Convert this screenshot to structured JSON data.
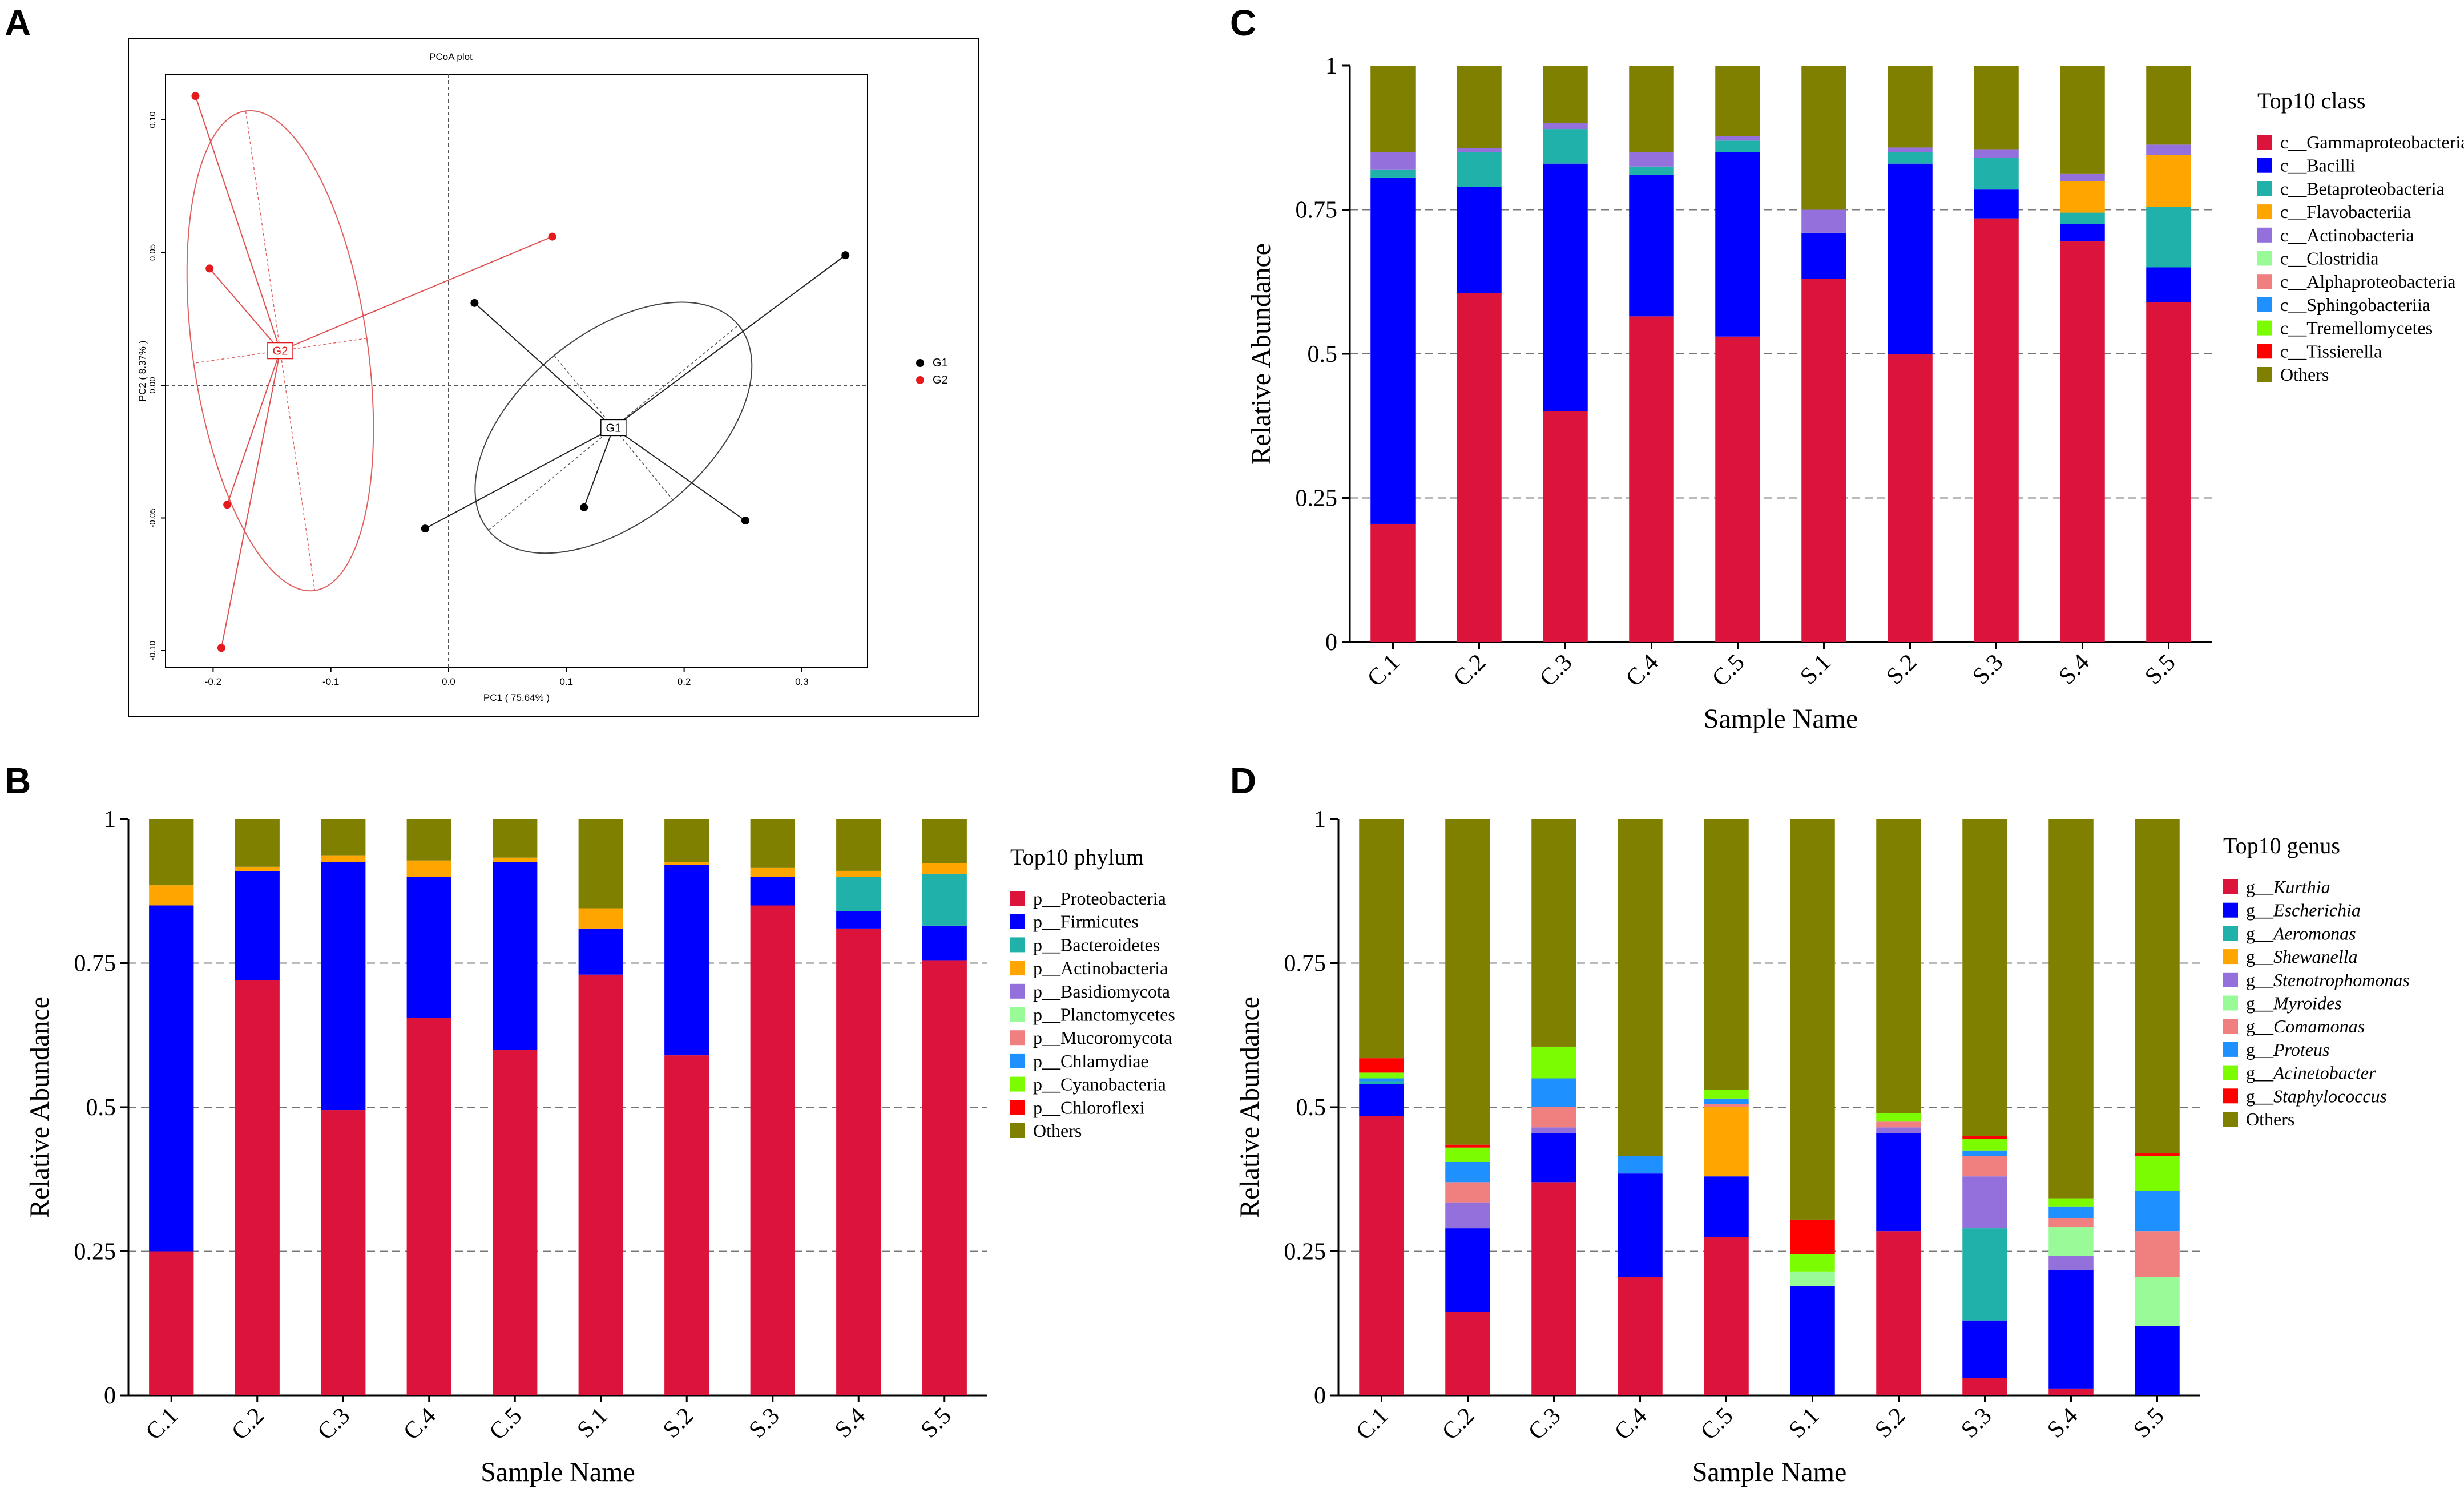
{
  "panels": {
    "a": {
      "letter": "A"
    },
    "b": {
      "letter": "B"
    },
    "c": {
      "letter": "C"
    },
    "d": {
      "letter": "D"
    }
  },
  "chart_data": [
    {
      "id": "A",
      "type": "scatter",
      "title": "PCoA plot",
      "xlabel": "PC1 ( 75.64% )",
      "ylabel": "PC2 ( 8.37% )",
      "xlim": [
        -0.235,
        0.36
      ],
      "ylim": [
        -0.11,
        0.12
      ],
      "xticks": [
        -0.2,
        -0.1,
        0.0,
        0.1,
        0.2,
        0.3
      ],
      "xtick_labels": [
        "-0.2",
        "-0.1",
        "0.0",
        "0.1",
        "0.2",
        "0.3"
      ],
      "yticks": [
        -0.1,
        -0.05,
        0.0,
        0.05,
        0.1
      ],
      "ytick_labels": [
        "-0.10",
        "-0.05",
        "0.00",
        "0.05",
        "0.10"
      ],
      "groups": [
        {
          "name": "G1",
          "color": "#000000",
          "centroid": [
            0.14,
            -0.016
          ],
          "points": [
            [
              0.337,
              0.049
            ],
            [
              0.022,
              0.031
            ],
            [
              -0.02,
              -0.054
            ],
            [
              0.115,
              -0.046
            ],
            [
              0.252,
              -0.051
            ]
          ],
          "ellipse": {
            "center": [
              0.14,
              -0.016
            ],
            "semi_axes": [
              0.113,
              0.037
            ],
            "angle_deg": 20
          }
        },
        {
          "name": "G2",
          "color": "#e41a1c",
          "centroid": [
            -0.143,
            0.013
          ],
          "points": [
            [
              -0.215,
              0.109
            ],
            [
              -0.203,
              0.044
            ],
            [
              0.088,
              0.056
            ],
            [
              -0.188,
              -0.045
            ],
            [
              -0.193,
              -0.099
            ]
          ],
          "ellipse": {
            "center": [
              -0.143,
              0.013
            ],
            "semi_axes": [
              0.095,
              0.063
            ],
            "angle_deg": -72
          }
        }
      ],
      "legend": [
        "G1",
        "G2"
      ]
    },
    {
      "id": "B",
      "type": "bar",
      "stacked": true,
      "xlabel": "Sample Name",
      "ylabel": "Relative Abundance",
      "ylim": [
        0,
        1
      ],
      "yticks": [
        0,
        0.25,
        0.5,
        0.75,
        1
      ],
      "ytick_labels": [
        "0",
        "0.25",
        "0.5",
        "0.75",
        "1"
      ],
      "legend_title": "Top10 phylum",
      "categories": [
        "C.1",
        "C.2",
        "C.3",
        "C.4",
        "C.5",
        "S.1",
        "S.2",
        "S.3",
        "S.4",
        "S.5"
      ],
      "series": [
        {
          "name": "p__Proteobacteria",
          "color": "#DC143C",
          "values": [
            0.25,
            0.72,
            0.495,
            0.655,
            0.6,
            0.73,
            0.59,
            0.85,
            0.81,
            0.755
          ]
        },
        {
          "name": "p__Firmicutes",
          "color": "#0000FF",
          "values": [
            0.6,
            0.19,
            0.43,
            0.245,
            0.325,
            0.08,
            0.33,
            0.05,
            0.03,
            0.06
          ]
        },
        {
          "name": "p__Bacteroidetes",
          "color": "#20B2AA",
          "values": [
            0.0,
            0.0,
            0.0,
            0.0,
            0.0,
            0.0,
            0.0,
            0.0,
            0.06,
            0.09
          ]
        },
        {
          "name": "p__Actinobacteria",
          "color": "#FFA500",
          "values": [
            0.035,
            0.007,
            0.012,
            0.028,
            0.008,
            0.035,
            0.005,
            0.015,
            0.01,
            0.018
          ]
        },
        {
          "name": "p__Basidiomycota",
          "color": "#9370DB",
          "values": [
            0,
            0,
            0,
            0,
            0,
            0,
            0,
            0,
            0,
            0
          ]
        },
        {
          "name": "p__Planctomycetes",
          "color": "#98FB98",
          "values": [
            0,
            0,
            0,
            0,
            0,
            0,
            0,
            0,
            0,
            0
          ]
        },
        {
          "name": "p__Mucoromycota",
          "color": "#F08080",
          "values": [
            0,
            0,
            0,
            0,
            0,
            0,
            0,
            0,
            0,
            0
          ]
        },
        {
          "name": "p__Chlamydiae",
          "color": "#1E90FF",
          "values": [
            0,
            0,
            0,
            0,
            0,
            0,
            0,
            0,
            0,
            0
          ]
        },
        {
          "name": "p__Cyanobacteria",
          "color": "#7CFC00",
          "values": [
            0,
            0,
            0,
            0,
            0,
            0,
            0,
            0,
            0,
            0
          ]
        },
        {
          "name": "p__Chloroflexi",
          "color": "#FF0000",
          "values": [
            0,
            0,
            0,
            0,
            0,
            0,
            0,
            0,
            0,
            0
          ]
        },
        {
          "name": "Others",
          "color": "#808000",
          "values": [
            0.115,
            0.083,
            0.063,
            0.072,
            0.067,
            0.155,
            0.075,
            0.085,
            0.09,
            0.077
          ]
        }
      ]
    },
    {
      "id": "C",
      "type": "bar",
      "stacked": true,
      "xlabel": "Sample Name",
      "ylabel": "Relative Abundance",
      "ylim": [
        0,
        1
      ],
      "yticks": [
        0,
        0.25,
        0.5,
        0.75,
        1
      ],
      "ytick_labels": [
        "0",
        "0.25",
        "0.5",
        "0.75",
        "1"
      ],
      "legend_title": "Top10 class",
      "categories": [
        "C.1",
        "C.2",
        "C.3",
        "C.4",
        "C.5",
        "S.1",
        "S.2",
        "S.3",
        "S.4",
        "S.5"
      ],
      "series": [
        {
          "name": "c__Gammaproteobacteria",
          "color": "#DC143C",
          "values": [
            0.205,
            0.605,
            0.4,
            0.565,
            0.53,
            0.63,
            0.5,
            0.735,
            0.695,
            0.59
          ]
        },
        {
          "name": "c__Bacilli",
          "color": "#0000FF",
          "values": [
            0.6,
            0.185,
            0.43,
            0.245,
            0.32,
            0.08,
            0.33,
            0.05,
            0.03,
            0.06
          ]
        },
        {
          "name": "c__Betaproteobacteria",
          "color": "#20B2AA",
          "values": [
            0.015,
            0.06,
            0.06,
            0.015,
            0.02,
            0.0,
            0.02,
            0.055,
            0.02,
            0.105
          ]
        },
        {
          "name": "c__Flavobacteriia",
          "color": "#FFA500",
          "values": [
            0.0,
            0.0,
            0.0,
            0.0,
            0.0,
            0.0,
            0.0,
            0.0,
            0.055,
            0.09
          ]
        },
        {
          "name": "c__Actinobacteria",
          "color": "#9370DB",
          "values": [
            0.03,
            0.007,
            0.01,
            0.025,
            0.008,
            0.04,
            0.008,
            0.015,
            0.012,
            0.018
          ]
        },
        {
          "name": "c__Clostridia",
          "color": "#98FB98",
          "values": [
            0,
            0,
            0,
            0,
            0,
            0,
            0,
            0,
            0,
            0
          ]
        },
        {
          "name": "c__Alphaproteobacteria",
          "color": "#F08080",
          "values": [
            0,
            0,
            0,
            0,
            0,
            0,
            0,
            0,
            0,
            0
          ]
        },
        {
          "name": "c__Sphingobacteriia",
          "color": "#1E90FF",
          "values": [
            0,
            0,
            0,
            0,
            0,
            0,
            0,
            0,
            0,
            0
          ]
        },
        {
          "name": "c__Tremellomycetes",
          "color": "#7CFC00",
          "values": [
            0,
            0,
            0,
            0,
            0,
            0,
            0,
            0,
            0,
            0
          ]
        },
        {
          "name": "c__Tissierella",
          "color": "#FF0000",
          "values": [
            0,
            0,
            0,
            0,
            0,
            0,
            0,
            0,
            0,
            0
          ]
        },
        {
          "name": "Others",
          "color": "#808000",
          "values": [
            0.15,
            0.143,
            0.1,
            0.15,
            0.122,
            0.25,
            0.142,
            0.145,
            0.188,
            0.137
          ]
        }
      ]
    },
    {
      "id": "D",
      "type": "bar",
      "stacked": true,
      "xlabel": "Sample Name",
      "ylabel": "Relative Abundance",
      "ylim": [
        0,
        1
      ],
      "yticks": [
        0,
        0.25,
        0.5,
        0.75,
        1
      ],
      "ytick_labels": [
        "0",
        "0.25",
        "0.5",
        "0.75",
        "1"
      ],
      "legend_title": "Top10 genus",
      "legend_italic_part": true,
      "categories": [
        "C.1",
        "C.2",
        "C.3",
        "C.4",
        "C.5",
        "S.1",
        "S.2",
        "S.3",
        "S.4",
        "S.5"
      ],
      "series": [
        {
          "name": "g__Kurthia",
          "color": "#DC143C",
          "values": [
            0.485,
            0.145,
            0.37,
            0.205,
            0.275,
            0.0,
            0.285,
            0.03,
            0.012,
            0.0
          ]
        },
        {
          "name": "g__Escherichia",
          "color": "#0000FF",
          "values": [
            0.055,
            0.145,
            0.085,
            0.18,
            0.105,
            0.19,
            0.17,
            0.1,
            0.205,
            0.12
          ]
        },
        {
          "name": "g__Aeromonas",
          "color": "#20B2AA",
          "values": [
            0.005,
            0.0,
            0.0,
            0.0,
            0.0,
            0.0,
            0.0,
            0.16,
            0.0,
            0.0
          ]
        },
        {
          "name": "g__Shewanella",
          "color": "#FFA500",
          "values": [
            0.0,
            0.0,
            0.0,
            0.0,
            0.12,
            0.0,
            0.0,
            0.0,
            0.0,
            0.0
          ]
        },
        {
          "name": "g__Stenotrophomonas",
          "color": "#9370DB",
          "values": [
            0.0,
            0.045,
            0.01,
            0.0,
            0.0,
            0.0,
            0.01,
            0.09,
            0.025,
            0.0
          ]
        },
        {
          "name": "g__Myroides",
          "color": "#98FB98",
          "values": [
            0.0,
            0.0,
            0.0,
            0.0,
            0.0,
            0.025,
            0.0,
            0.0,
            0.05,
            0.085
          ]
        },
        {
          "name": "g__Comamonas",
          "color": "#F08080",
          "values": [
            0.0,
            0.035,
            0.035,
            0.0,
            0.005,
            0.0,
            0.01,
            0.035,
            0.015,
            0.08
          ]
        },
        {
          "name": "g__Proteus",
          "color": "#1E90FF",
          "values": [
            0.005,
            0.035,
            0.05,
            0.03,
            0.01,
            0.0,
            0.0,
            0.01,
            0.02,
            0.07
          ]
        },
        {
          "name": "g__Acinetobacter",
          "color": "#7CFC00",
          "values": [
            0.01,
            0.025,
            0.055,
            0.0,
            0.015,
            0.03,
            0.015,
            0.02,
            0.015,
            0.06
          ]
        },
        {
          "name": "g__Staphylococcus",
          "color": "#FF0000",
          "values": [
            0.025,
            0.005,
            0.0,
            0.0,
            0.0,
            0.06,
            0.0,
            0.005,
            0.0,
            0.005
          ]
        },
        {
          "name": "Others",
          "color": "#808000",
          "values": [
            0.415,
            0.565,
            0.395,
            0.585,
            0.47,
            0.695,
            0.51,
            0.55,
            0.658,
            0.58
          ]
        }
      ]
    }
  ]
}
